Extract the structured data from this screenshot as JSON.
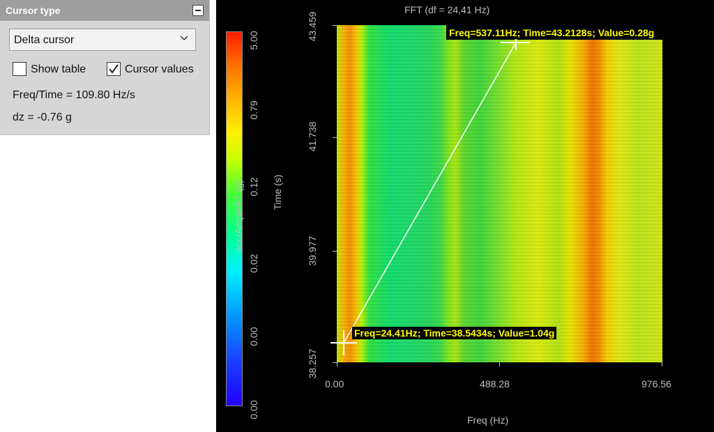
{
  "panel": {
    "title": "Cursor type",
    "cursor_select": {
      "value": "Delta cursor"
    },
    "show_table": {
      "label": "Show table",
      "checked": false
    },
    "cursor_values": {
      "label": "Cursor values",
      "checked": true
    },
    "freq_time": "Freq/Time = 109.80 Hz/s",
    "dz": "dz = -0.76 g",
    "icons": [
      "collapse-icon",
      "chevron-down-icon",
      "checkmark-icon"
    ]
  },
  "plot": {
    "title": "FFT (df = 24,41 Hz)",
    "xlabel": "Freq (Hz)",
    "ylabel": "Time (s)",
    "x_ticks": [
      "0.00",
      "488.28",
      "976.56"
    ],
    "y_ticks": [
      "43.459",
      "41.738",
      "39.977",
      "38.257"
    ],
    "colorbar": {
      "label": "acc/AmplFFT (g)",
      "ticks": [
        "5.00",
        "0.79",
        "0.12",
        "0.02",
        "0.00",
        "0.00"
      ]
    },
    "cursor1": {
      "readout": "Freq=24.41Hz; Time=38.5434s; Value=1.04g"
    },
    "cursor2": {
      "readout": "Freq=537.11Hz; Time=43.2128s; Value=0.28g"
    }
  },
  "chart_data": {
    "type": "heatmap",
    "title": "FFT (df = 24,41 Hz)",
    "xlabel": "Freq (Hz)",
    "ylabel": "Time (s)",
    "xlim": [
      0,
      976.56
    ],
    "ylim": [
      38.257,
      43.459
    ],
    "x_ticks": [
      0.0,
      488.28,
      976.56
    ],
    "y_ticks": [
      38.257,
      39.977,
      41.738,
      43.459
    ],
    "colorbar_label": "acc/AmplFFT (g)",
    "colorbar_ticks": [
      "5.00",
      "0.79",
      "0.12",
      "0.02",
      "0.00",
      "0.00"
    ],
    "colorbar_scale": "log",
    "cursors": [
      {
        "freq": 24.41,
        "time": 38.5434,
        "value": 1.04
      },
      {
        "freq": 537.11,
        "time": 43.2128,
        "value": 0.28
      }
    ],
    "colors": {
      "background": "#000000",
      "cursor_text": "#ffff00",
      "cursor_line": "#ffffff"
    }
  }
}
